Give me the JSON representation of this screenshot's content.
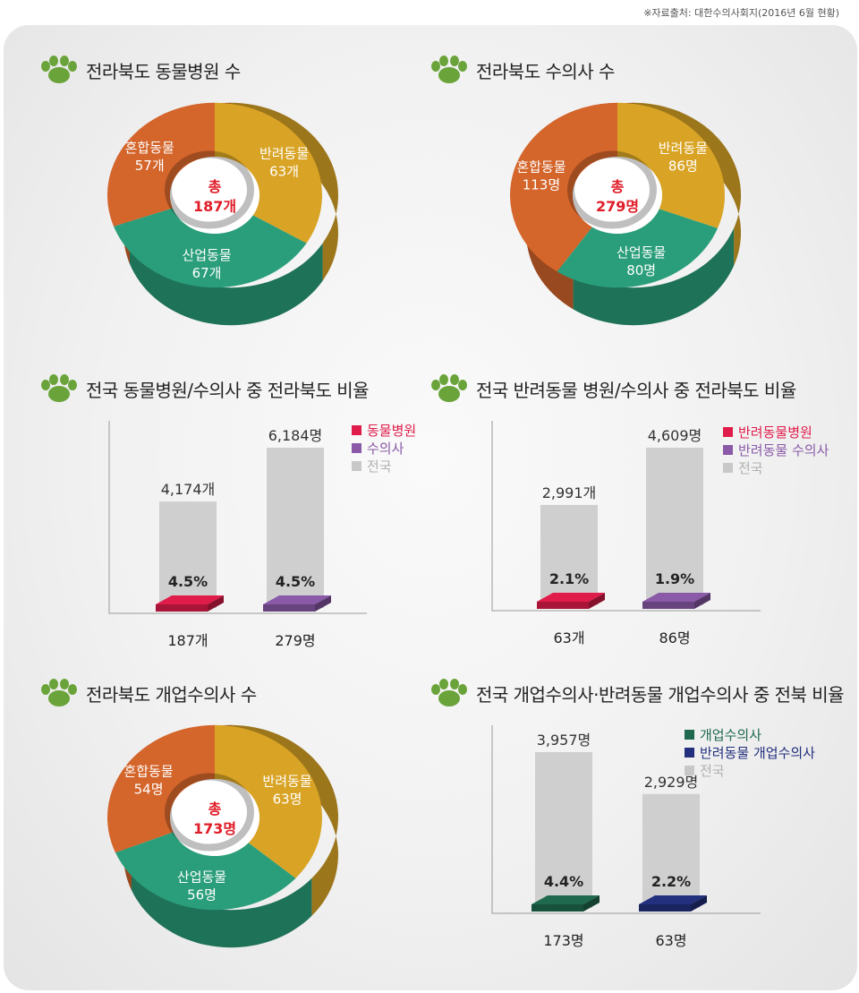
{
  "source_note": "※자료출처: 대한수의사회지(2016년 6월 현황)",
  "colors": {
    "orange": "#d4652b",
    "yellow": "#d9a425",
    "green": "#2a9e7a",
    "red": "#e01c4a",
    "purple": "#8a5aa8",
    "darkgreen": "#1f6a4e",
    "navy": "#23307e",
    "gray": "#cfcfcf",
    "total_red": "#e01c27"
  },
  "chart_data": [
    {
      "type": "pie",
      "title": "전라북도 동물병원 수",
      "center": {
        "label": "총",
        "value": "187개"
      },
      "slices": [
        {
          "name": "혼합동물",
          "value": 57,
          "text": "57개",
          "color": "#d4652b"
        },
        {
          "name": "반려동물",
          "value": 63,
          "text": "63개",
          "color": "#d9a425"
        },
        {
          "name": "산업동물",
          "value": 67,
          "text": "67개",
          "color": "#2a9e7a"
        }
      ]
    },
    {
      "type": "pie",
      "title": "전라북도 수의사 수",
      "center": {
        "label": "총",
        "value": "279명"
      },
      "slices": [
        {
          "name": "혼합동물",
          "value": 113,
          "text": "113명",
          "color": "#d4652b"
        },
        {
          "name": "반려동물",
          "value": 86,
          "text": "86명",
          "color": "#d9a425"
        },
        {
          "name": "산업동물",
          "value": 80,
          "text": "80명",
          "color": "#2a9e7a"
        }
      ]
    },
    {
      "type": "bar",
      "title": "전국 동물병원/수의사 중 전라북도 비율",
      "legend": [
        {
          "label": "동물병원",
          "color": "#e01c4a"
        },
        {
          "label": "수의사",
          "color": "#8a5aa8"
        },
        {
          "label": "전국",
          "color": "#c8c8c8"
        }
      ],
      "bars": [
        {
          "total": 4174,
          "total_text": "4,174개",
          "part": 187,
          "part_text": "187개",
          "pct": "4.5%",
          "color": "#e01c4a"
        },
        {
          "total": 6184,
          "total_text": "6,184명",
          "part": 279,
          "part_text": "279명",
          "pct": "4.5%",
          "color": "#8a5aa8"
        }
      ]
    },
    {
      "type": "bar",
      "title": "전국 반려동물 병원/수의사 중 전라북도 비율",
      "legend": [
        {
          "label": "반려동물병원",
          "color": "#e01c4a"
        },
        {
          "label": "반려동물 수의사",
          "color": "#8a5aa8"
        },
        {
          "label": "전국",
          "color": "#c8c8c8"
        }
      ],
      "bars": [
        {
          "total": 2991,
          "total_text": "2,991개",
          "part": 63,
          "part_text": "63개",
          "pct": "2.1%",
          "color": "#e01c4a"
        },
        {
          "total": 4609,
          "total_text": "4,609명",
          "part": 86,
          "part_text": "86명",
          "pct": "1.9%",
          "color": "#8a5aa8"
        }
      ]
    },
    {
      "type": "pie",
      "title": "전라북도 개업수의사 수",
      "center": {
        "label": "총",
        "value": "173명"
      },
      "slices": [
        {
          "name": "혼합동물",
          "value": 54,
          "text": "54명",
          "color": "#d4652b"
        },
        {
          "name": "반려동물",
          "value": 63,
          "text": "63명",
          "color": "#d9a425"
        },
        {
          "name": "산업동물",
          "value": 56,
          "text": "56명",
          "color": "#2a9e7a"
        }
      ]
    },
    {
      "type": "bar",
      "title": "전국 개업수의사·반려동물 개업수의사 중 전북 비율",
      "legend": [
        {
          "label": "개업수의사",
          "color": "#1f6a4e"
        },
        {
          "label": "반려동물 개업수의사",
          "color": "#23307e"
        },
        {
          "label": "전국",
          "color": "#c8c8c8"
        }
      ],
      "bars": [
        {
          "total": 3957,
          "total_text": "3,957명",
          "part": 173,
          "part_text": "173명",
          "pct": "4.4%",
          "color": "#1f6a4e"
        },
        {
          "total": 2929,
          "total_text": "2,929명",
          "part": 63,
          "part_text": "63명",
          "pct": "2.2%",
          "color": "#23307e"
        }
      ]
    }
  ]
}
